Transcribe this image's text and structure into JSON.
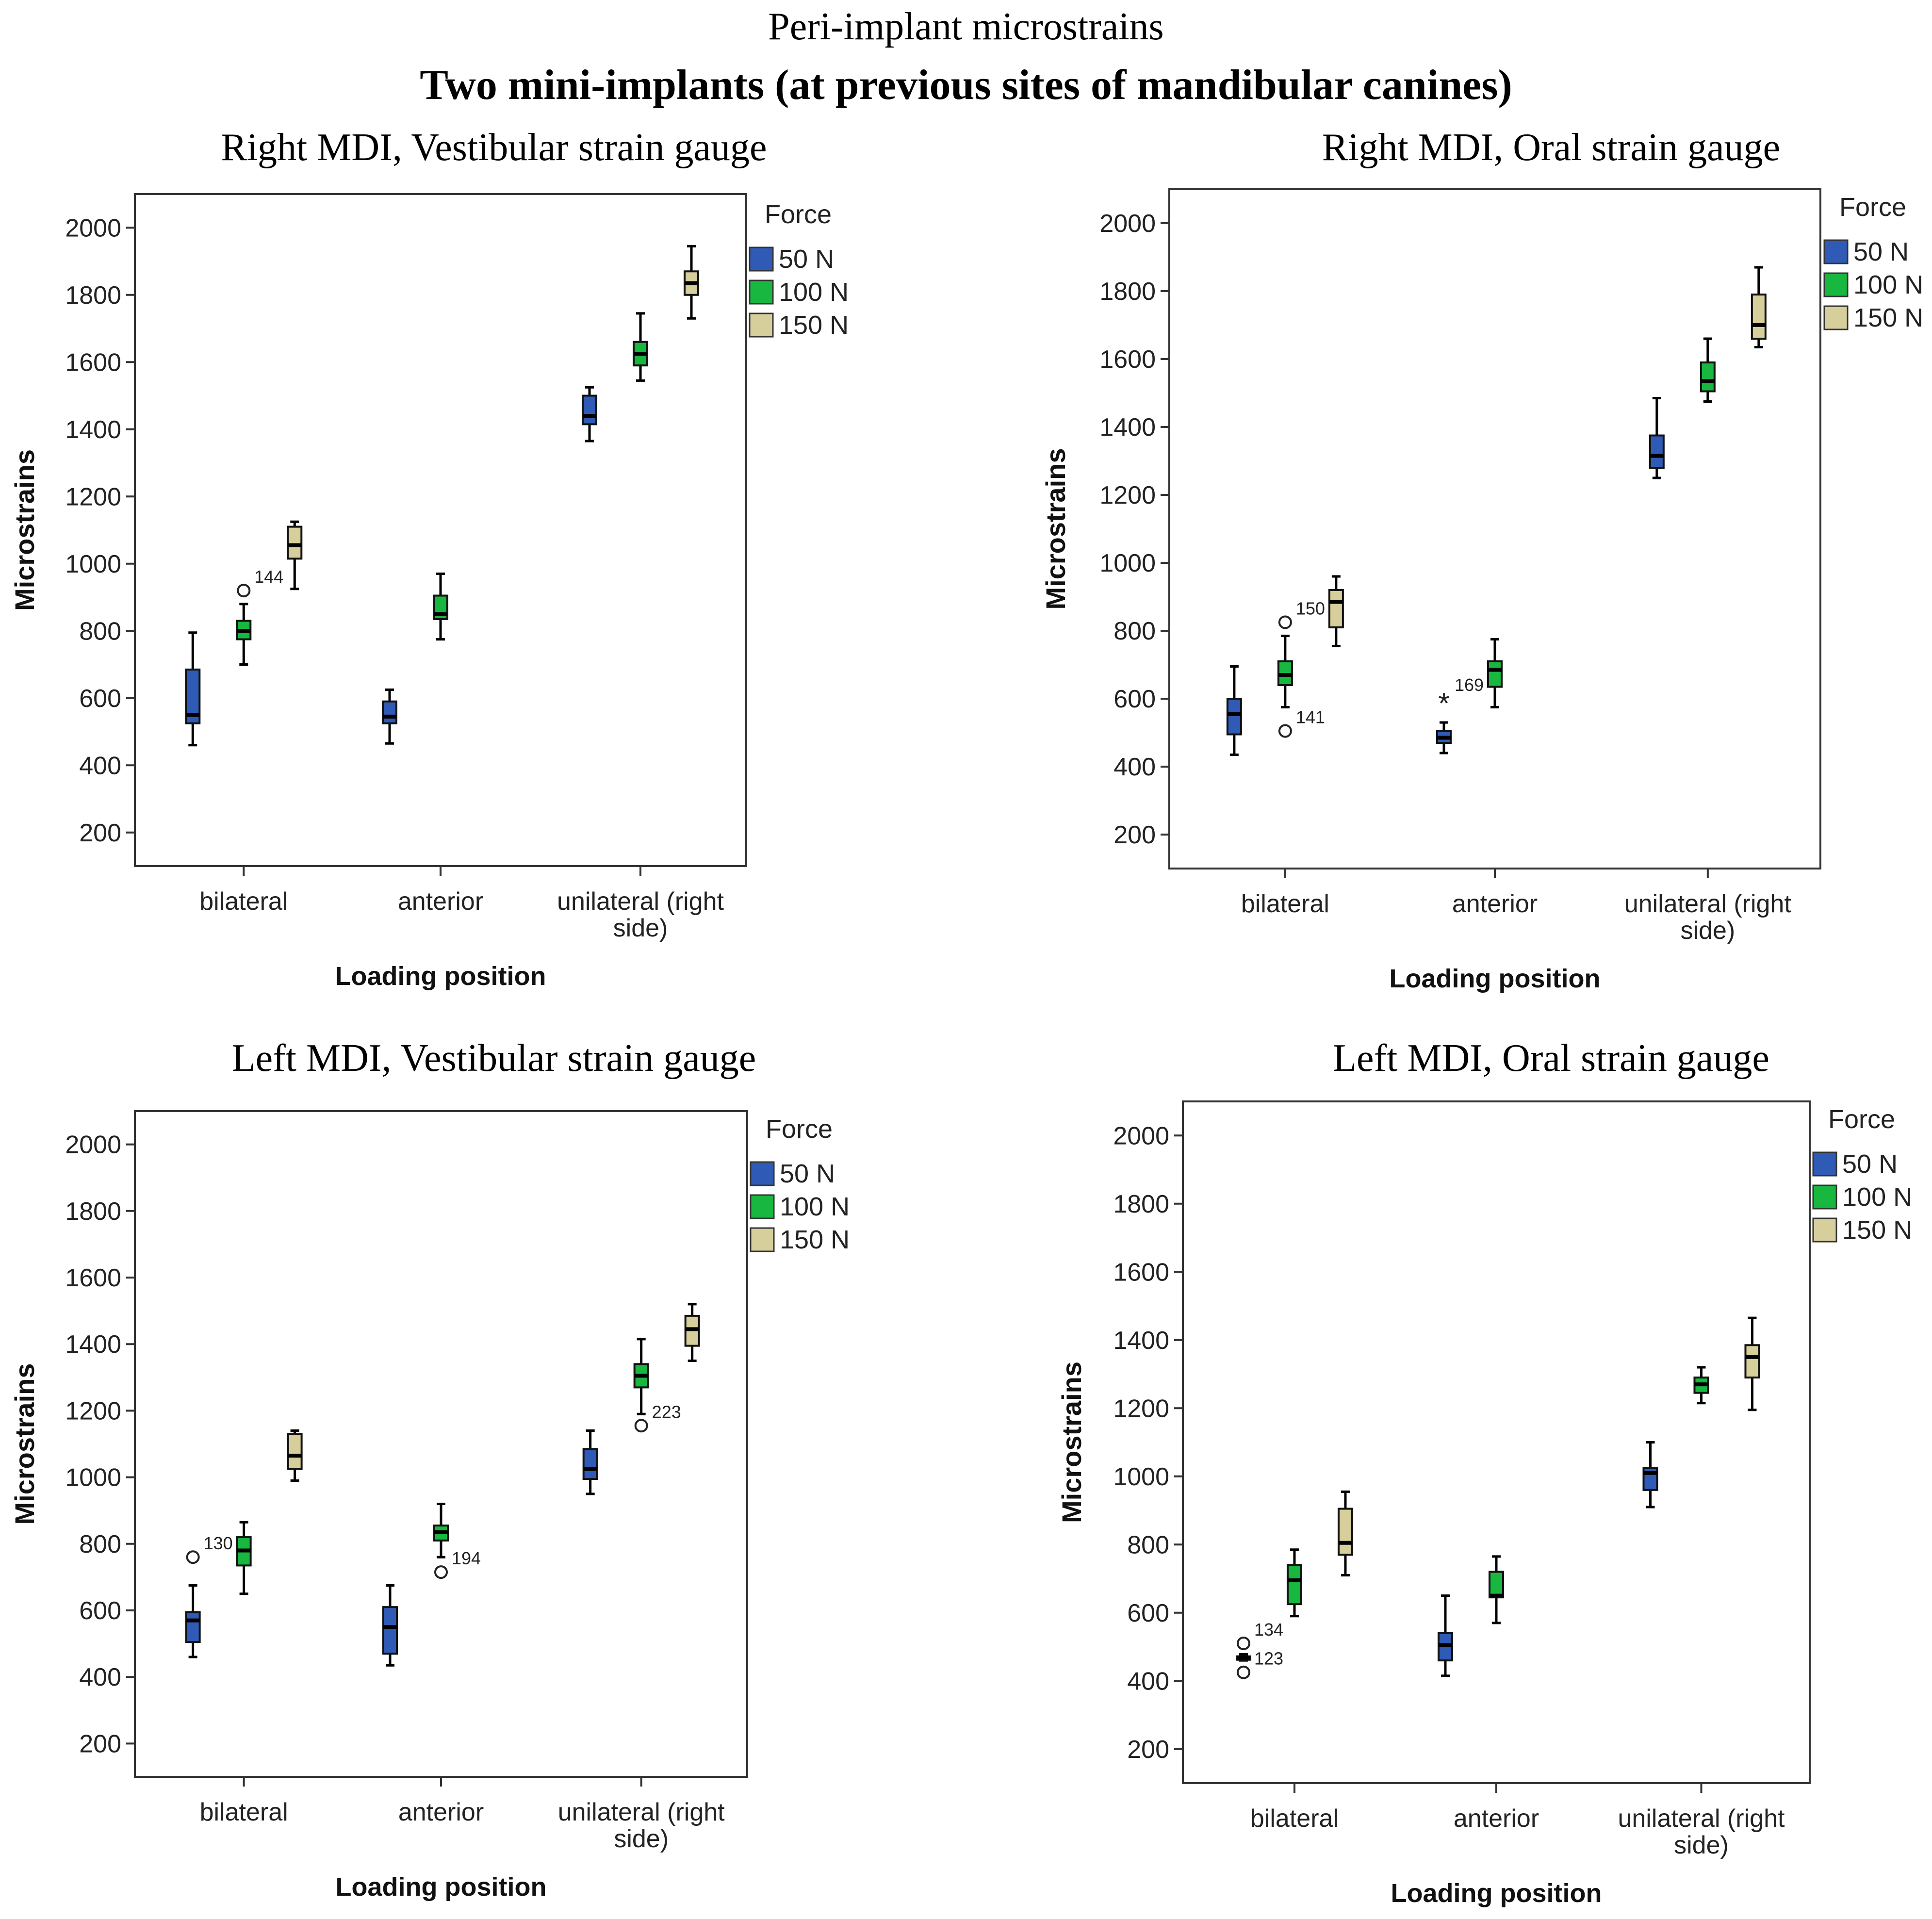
{
  "figure": {
    "title": "Peri-implant microstrains",
    "subtitle": "Two mini-implants (at previous sites of mandibular canines)"
  },
  "colors": {
    "50 N": "#2f5bb6",
    "100 N": "#18b840",
    "150 N": "#d7cf9b"
  },
  "chart_data": [
    {
      "type": "boxplot",
      "title": "Right MDI, Vestibular strain gauge",
      "xlabel": "Loading position",
      "ylabel": "Microstrains",
      "ylim": [
        100,
        2100
      ],
      "yticks": [
        200,
        400,
        600,
        800,
        1000,
        1200,
        1400,
        1600,
        1800,
        2000
      ],
      "categories": [
        "bilateral",
        "anterior",
        "unilateral  (right side)"
      ],
      "category_lines": [
        [
          "bilateral"
        ],
        [
          "anterior"
        ],
        [
          "unilateral  (right",
          "side)"
        ]
      ],
      "legend": {
        "title": "Force",
        "entries": [
          "50 N",
          "100 N",
          "150 N"
        ]
      },
      "series": [
        {
          "name": "50 N",
          "boxes": [
            {
              "min": 460,
              "q1": 525,
              "median": 550,
              "q3": 685,
              "max": 795
            },
            {
              "min": 465,
              "q1": 525,
              "median": 545,
              "q3": 590,
              "max": 625
            },
            {
              "min": 1365,
              "q1": 1415,
              "median": 1440,
              "q3": 1500,
              "max": 1525
            }
          ]
        },
        {
          "name": "100 N",
          "boxes": [
            {
              "min": 700,
              "q1": 775,
              "median": 800,
              "q3": 830,
              "max": 880,
              "outliers": [
                {
                  "value": 920,
                  "label": "144",
                  "symbol": "circle"
                }
              ]
            },
            {
              "min": 775,
              "q1": 835,
              "median": 850,
              "q3": 905,
              "max": 970
            },
            {
              "min": 1545,
              "q1": 1590,
              "median": 1625,
              "q3": 1660,
              "max": 1745
            }
          ]
        },
        {
          "name": "150 N",
          "boxes": [
            {
              "min": 925,
              "q1": 1015,
              "median": 1055,
              "q3": 1110,
              "max": 1125
            },
            null,
            {
              "min": 1730,
              "q1": 1800,
              "median": 1835,
              "q3": 1870,
              "max": 1945
            }
          ]
        }
      ]
    },
    {
      "type": "boxplot",
      "title": "Right MDI, Oral strain gauge",
      "xlabel": "Loading position",
      "ylabel": "Microstrains",
      "ylim": [
        100,
        2100
      ],
      "yticks": [
        200,
        400,
        600,
        800,
        1000,
        1200,
        1400,
        1600,
        1800,
        2000
      ],
      "categories": [
        "bilateral",
        "anterior",
        "unilateral  (right side)"
      ],
      "category_lines": [
        [
          "bilateral"
        ],
        [
          "anterior"
        ],
        [
          "unilateral  (right",
          "side)"
        ]
      ],
      "legend": {
        "title": "Force",
        "entries": [
          "50 N",
          "100 N",
          "150 N"
        ]
      },
      "series": [
        {
          "name": "50 N",
          "boxes": [
            {
              "min": 435,
              "q1": 495,
              "median": 555,
              "q3": 600,
              "max": 695
            },
            {
              "min": 440,
              "q1": 470,
              "median": 485,
              "q3": 505,
              "max": 530,
              "outliers": [
                {
                  "value": 600,
                  "label": "169",
                  "symbol": "star"
                }
              ]
            },
            {
              "min": 1250,
              "q1": 1280,
              "median": 1315,
              "q3": 1375,
              "max": 1485
            }
          ]
        },
        {
          "name": "100 N",
          "boxes": [
            {
              "min": 575,
              "q1": 640,
              "median": 670,
              "q3": 710,
              "max": 785,
              "outliers": [
                {
                  "value": 825,
                  "label": "150",
                  "symbol": "circle"
                },
                {
                  "value": 505,
                  "label": "141",
                  "symbol": "circle"
                }
              ]
            },
            {
              "min": 575,
              "q1": 635,
              "median": 685,
              "q3": 710,
              "max": 775
            },
            {
              "min": 1475,
              "q1": 1505,
              "median": 1535,
              "q3": 1590,
              "max": 1660
            }
          ]
        },
        {
          "name": "150 N",
          "boxes": [
            {
              "min": 755,
              "q1": 810,
              "median": 885,
              "q3": 920,
              "max": 960
            },
            null,
            {
              "min": 1635,
              "q1": 1660,
              "median": 1700,
              "q3": 1790,
              "max": 1870
            }
          ]
        }
      ]
    },
    {
      "type": "boxplot",
      "title": "Left MDI, Vestibular strain gauge",
      "xlabel": "Loading position",
      "ylabel": "Microstrains",
      "ylim": [
        100,
        2100
      ],
      "yticks": [
        200,
        400,
        600,
        800,
        1000,
        1200,
        1400,
        1600,
        1800,
        2000
      ],
      "categories": [
        "bilateral",
        "anterior",
        "unilateral  (right side)"
      ],
      "category_lines": [
        [
          "bilateral"
        ],
        [
          "anterior"
        ],
        [
          "unilateral  (right",
          "side)"
        ]
      ],
      "legend": {
        "title": "Force",
        "entries": [
          "50 N",
          "100 N",
          "150 N"
        ]
      },
      "series": [
        {
          "name": "50 N",
          "boxes": [
            {
              "min": 460,
              "q1": 505,
              "median": 570,
              "q3": 595,
              "max": 675,
              "outliers": [
                {
                  "value": 760,
                  "label": "130",
                  "symbol": "circle"
                }
              ]
            },
            {
              "min": 435,
              "q1": 470,
              "median": 550,
              "q3": 610,
              "max": 675
            },
            {
              "min": 950,
              "q1": 995,
              "median": 1025,
              "q3": 1085,
              "max": 1140
            }
          ]
        },
        {
          "name": "100 N",
          "boxes": [
            {
              "min": 650,
              "q1": 735,
              "median": 780,
              "q3": 820,
              "max": 865
            },
            {
              "min": 760,
              "q1": 810,
              "median": 835,
              "q3": 855,
              "max": 920,
              "outliers": [
                {
                  "value": 715,
                  "label": "194",
                  "symbol": "circle"
                }
              ]
            },
            {
              "min": 1190,
              "q1": 1270,
              "median": 1305,
              "q3": 1340,
              "max": 1415,
              "outliers": [
                {
                  "value": 1155,
                  "label": "223",
                  "symbol": "circle"
                }
              ]
            }
          ]
        },
        {
          "name": "150 N",
          "boxes": [
            {
              "min": 990,
              "q1": 1025,
              "median": 1065,
              "q3": 1130,
              "max": 1140
            },
            null,
            {
              "min": 1350,
              "q1": 1395,
              "median": 1445,
              "q3": 1485,
              "max": 1520
            }
          ]
        }
      ]
    },
    {
      "type": "boxplot",
      "title": "Left MDI, Oral strain gauge",
      "xlabel": "Loading position",
      "ylabel": "Microstrains",
      "ylim": [
        100,
        2100
      ],
      "yticks": [
        200,
        400,
        600,
        800,
        1000,
        1200,
        1400,
        1600,
        1800,
        2000
      ],
      "categories": [
        "bilateral",
        "anterior",
        "unilateral  (right side)"
      ],
      "category_lines": [
        [
          "bilateral"
        ],
        [
          "anterior"
        ],
        [
          "unilateral  (right",
          "side)"
        ]
      ],
      "legend": {
        "title": "Force",
        "entries": [
          "50 N",
          "100 N",
          "150 N"
        ]
      },
      "series": [
        {
          "name": "50 N",
          "boxes": [
            {
              "min": 460,
              "q1": 462,
              "median": 468,
              "q3": 472,
              "max": 478,
              "outliers": [
                {
                  "value": 510,
                  "label": "134",
                  "symbol": "circle"
                },
                {
                  "value": 425,
                  "label": "123",
                  "symbol": "circle"
                }
              ]
            },
            {
              "min": 415,
              "q1": 460,
              "median": 505,
              "q3": 540,
              "max": 650
            },
            {
              "min": 910,
              "q1": 960,
              "median": 1010,
              "q3": 1025,
              "max": 1100
            }
          ]
        },
        {
          "name": "100 N",
          "boxes": [
            {
              "min": 590,
              "q1": 625,
              "median": 695,
              "q3": 740,
              "max": 785
            },
            {
              "min": 570,
              "q1": 645,
              "median": 650,
              "q3": 720,
              "max": 765
            },
            {
              "min": 1215,
              "q1": 1245,
              "median": 1270,
              "q3": 1290,
              "max": 1320
            }
          ]
        },
        {
          "name": "150 N",
          "boxes": [
            {
              "min": 710,
              "q1": 770,
              "median": 805,
              "q3": 905,
              "max": 955
            },
            null,
            {
              "min": 1195,
              "q1": 1290,
              "median": 1350,
              "q3": 1385,
              "max": 1465
            }
          ]
        }
      ]
    }
  ]
}
